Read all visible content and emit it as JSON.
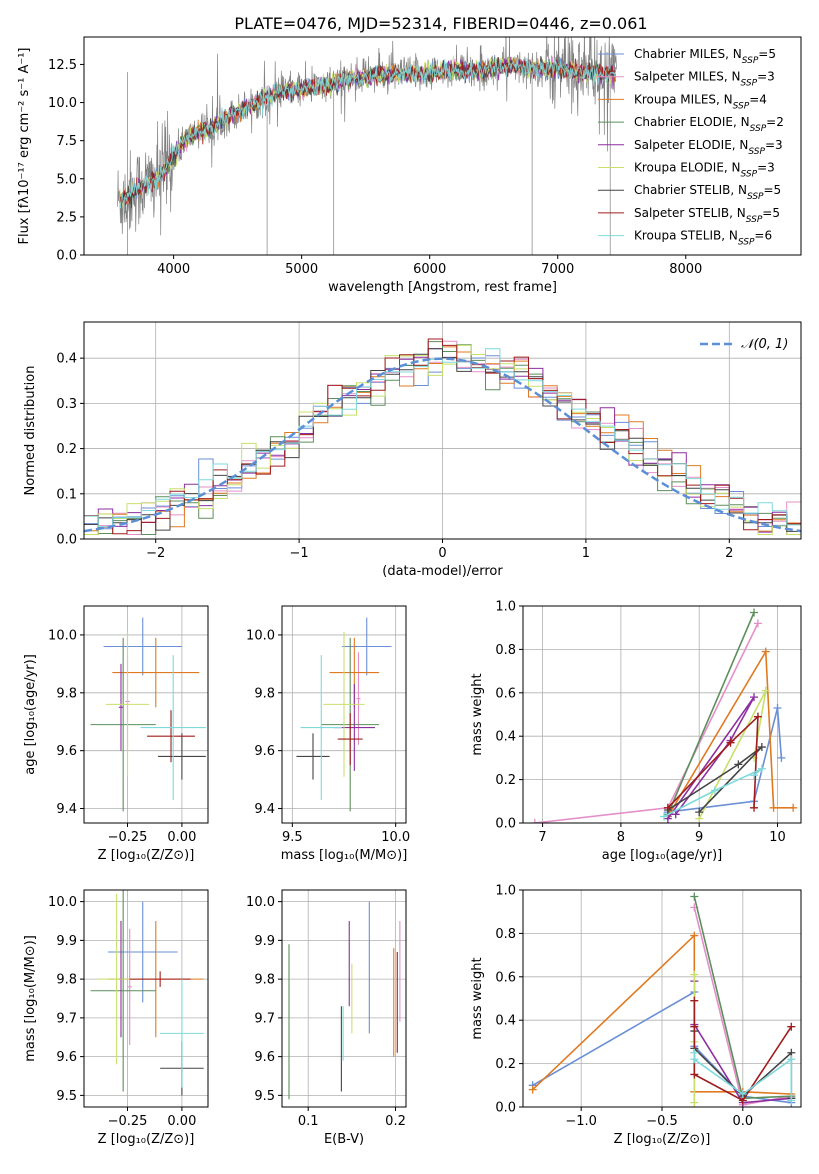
{
  "figure_title": "PLATE=0476, MJD=52314, FIBERID=0446, z=0.061",
  "colors": [
    "#6a8fd6",
    "#e58fc8",
    "#e07a22",
    "#5c8f5c",
    "#8d2ea0",
    "#c8e06a",
    "#444444",
    "#a01c1c",
    "#7fd9dc"
  ],
  "chart_data": [
    {
      "id": "spectrum",
      "type": "line",
      "title": "PLATE=0476, MJD=52314, FIBERID=0446, z=0.061",
      "xlabel": "wavelength [Angstrom, rest frame]",
      "ylabel": "Flux [fλ10⁻¹⁷ erg cm⁻² s⁻¹ A⁻¹]",
      "xlim": [
        3300,
        8900
      ],
      "ylim": [
        0,
        14.3
      ],
      "xticks": [
        4000,
        5000,
        6000,
        7000,
        8000
      ],
      "yticks": [
        0.0,
        2.5,
        5.0,
        7.5,
        10.0,
        12.5
      ],
      "legend_position": "right",
      "data_color": "#808080",
      "continuum": [
        [
          3600,
          3.6
        ],
        [
          3700,
          4.3
        ],
        [
          3800,
          4.7
        ],
        [
          3900,
          5.2
        ],
        [
          4000,
          6.5
        ],
        [
          4100,
          7.6
        ],
        [
          4200,
          8.2
        ],
        [
          4300,
          8.3
        ],
        [
          4400,
          9.0
        ],
        [
          4500,
          9.4
        ],
        [
          4600,
          9.8
        ],
        [
          4700,
          10.2
        ],
        [
          4800,
          10.6
        ],
        [
          4900,
          10.8
        ],
        [
          5000,
          10.9
        ],
        [
          5100,
          11.0
        ],
        [
          5200,
          11.1
        ],
        [
          5300,
          11.4
        ],
        [
          5400,
          11.6
        ],
        [
          5500,
          11.7
        ],
        [
          5600,
          11.8
        ],
        [
          5700,
          11.8
        ],
        [
          5800,
          11.9
        ],
        [
          5900,
          11.9
        ],
        [
          6000,
          12.0
        ],
        [
          6100,
          12.1
        ],
        [
          6200,
          12.2
        ],
        [
          6300,
          12.1
        ],
        [
          6400,
          12.1
        ],
        [
          6500,
          12.3
        ],
        [
          6600,
          12.4
        ],
        [
          6700,
          12.3
        ],
        [
          6800,
          12.3
        ],
        [
          6900,
          12.2
        ],
        [
          7000,
          12.2
        ],
        [
          7100,
          12.1
        ],
        [
          7200,
          12.0
        ],
        [
          7300,
          12.0
        ],
        [
          7400,
          11.9
        ],
        [
          7450,
          11.9
        ]
      ],
      "data_range": [
        3560,
        7460
      ],
      "spikes": [
        [
          4730,
          0
        ],
        [
          5250,
          0
        ],
        [
          6800,
          0
        ],
        [
          7410,
          0
        ],
        [
          3640,
          12.0
        ],
        [
          3640,
          0
        ]
      ],
      "series": [
        {
          "name": "Chabrier MILES, N$_{SSP}$=5"
        },
        {
          "name": "Salpeter MILES, N$_{SSP}$=3"
        },
        {
          "name": "Kroupa MILES, N$_{SSP}$=4"
        },
        {
          "name": "Chabrier ELODIE, N$_{SSP}$=2"
        },
        {
          "name": "Salpeter ELODIE, N$_{SSP}$=3"
        },
        {
          "name": "Kroupa ELODIE, N$_{SSP}$=3"
        },
        {
          "name": "Chabrier STELIB, N$_{SSP}$=5"
        },
        {
          "name": "Salpeter STELIB, N$_{SSP}$=5"
        },
        {
          "name": "Kroupa STELIB, N$_{SSP}$=6"
        }
      ]
    },
    {
      "id": "residuals",
      "type": "line",
      "xlabel": "(data-model)/error",
      "ylabel": "Normed distribution",
      "xlim": [
        -2.5,
        2.5
      ],
      "ylim": [
        0,
        0.48
      ],
      "xticks": [
        -2,
        -1,
        0,
        1,
        2
      ],
      "yticks": [
        0.0,
        0.1,
        0.2,
        0.3,
        0.4
      ],
      "grid": true,
      "legend_position": "top-right",
      "legend_entry": "𝒩(0, 1)",
      "gaussian_color": "#5b8fd6",
      "bin_edges_start": -2.5,
      "bin_width": 0.1,
      "histogram_base": [
        0.02,
        0.03,
        0.03,
        0.04,
        0.05,
        0.06,
        0.07,
        0.09,
        0.1,
        0.12,
        0.14,
        0.16,
        0.18,
        0.2,
        0.22,
        0.25,
        0.27,
        0.29,
        0.31,
        0.33,
        0.35,
        0.36,
        0.38,
        0.39,
        0.4,
        0.4,
        0.4,
        0.39,
        0.38,
        0.37,
        0.36,
        0.34,
        0.32,
        0.3,
        0.28,
        0.26,
        0.24,
        0.22,
        0.2,
        0.18,
        0.16,
        0.14,
        0.12,
        0.1,
        0.09,
        0.07,
        0.06,
        0.05,
        0.04,
        0.03
      ]
    },
    {
      "id": "age-vs-Z",
      "type": "scatter",
      "xlabel": "Z [log₁₀(Z/Z⊙)]",
      "ylabel": "age  [log₁₀(age/yr)]",
      "xlim": [
        -0.45,
        0.12
      ],
      "ylim": [
        9.35,
        10.1
      ],
      "xticks": [
        -0.25,
        0.0
      ],
      "xtick_labels": [
        "−0.25",
        "0.00"
      ],
      "yticks": [
        9.4,
        9.6,
        9.8,
        10.0
      ],
      "grid": true,
      "points": [
        {
          "x": -0.18,
          "y": 9.96,
          "xerr": 0.18,
          "yerr": 0.1
        },
        {
          "x": -0.25,
          "y": 9.77,
          "xerr": 0.01,
          "yerr": 0.16
        },
        {
          "x": -0.12,
          "y": 9.87,
          "xerr": 0.2,
          "yerr": 0.12
        },
        {
          "x": -0.27,
          "y": 9.69,
          "xerr": 0.15,
          "yerr": 0.3
        },
        {
          "x": -0.28,
          "y": 9.75,
          "xerr": 0.01,
          "yerr": 0.15
        },
        {
          "x": -0.25,
          "y": 9.76,
          "xerr": 0.1,
          "yerr": 0.25
        },
        {
          "x": 0.0,
          "y": 9.58,
          "xerr": 0.11,
          "yerr": 0.08
        },
        {
          "x": -0.05,
          "y": 9.65,
          "xerr": 0.11,
          "yerr": 0.09
        },
        {
          "x": -0.04,
          "y": 9.68,
          "xerr": 0.15,
          "yerr": 0.25
        }
      ]
    },
    {
      "id": "age-vs-mass",
      "type": "scatter",
      "xlabel": "mass [log₁₀(M/M⊙)]",
      "xlim": [
        9.45,
        10.05
      ],
      "ylim": [
        9.35,
        10.1
      ],
      "xticks": [
        9.5,
        10.0
      ],
      "yticks": [
        9.4,
        9.6,
        9.8,
        10.0
      ],
      "grid": true,
      "points": [
        {
          "x": 9.86,
          "y": 9.96,
          "xerr": 0.12,
          "yerr": 0.1
        },
        {
          "x": 9.82,
          "y": 9.78,
          "xerr": 0.01,
          "yerr": 0.16
        },
        {
          "x": 9.8,
          "y": 9.87,
          "xerr": 0.12,
          "yerr": 0.12
        },
        {
          "x": 9.78,
          "y": 9.69,
          "xerr": 0.14,
          "yerr": 0.3
        },
        {
          "x": 9.8,
          "y": 9.68,
          "xerr": 0.1,
          "yerr": 0.15
        },
        {
          "x": 9.75,
          "y": 9.76,
          "xerr": 0.1,
          "yerr": 0.25
        },
        {
          "x": 9.6,
          "y": 9.58,
          "xerr": 0.08,
          "yerr": 0.08
        },
        {
          "x": 9.78,
          "y": 9.64,
          "xerr": 0.06,
          "yerr": 0.09
        },
        {
          "x": 9.64,
          "y": 9.68,
          "xerr": 0.1,
          "yerr": 0.25
        }
      ]
    },
    {
      "id": "mass-weight-vs-age",
      "type": "line",
      "xlabel": "age  [log₁₀(age/yr)]",
      "ylabel": "mass weight",
      "xlim": [
        6.75,
        10.3
      ],
      "ylim": [
        0.0,
        1.0
      ],
      "xticks": [
        7,
        8,
        9,
        10
      ],
      "yticks": [
        0.0,
        0.2,
        0.4,
        0.6,
        0.8,
        1.0
      ],
      "grid": true,
      "series": [
        {
          "points": [
            [
              8.6,
              0.05
            ],
            [
              9.7,
              0.1
            ],
            [
              10.0,
              0.53
            ],
            [
              10.05,
              0.3
            ]
          ]
        },
        {
          "points": [
            [
              6.9,
              0.0
            ],
            [
              8.6,
              0.07
            ],
            [
              9.75,
              0.92
            ]
          ]
        },
        {
          "points": [
            [
              8.6,
              0.03
            ],
            [
              9.85,
              0.79
            ],
            [
              9.95,
              0.07
            ],
            [
              10.2,
              0.07
            ]
          ]
        },
        {
          "points": [
            [
              8.6,
              0.04
            ],
            [
              9.7,
              0.97
            ]
          ]
        },
        {
          "points": [
            [
              8.6,
              0.02
            ],
            [
              9.7,
              0.58
            ],
            [
              9.4,
              0.38
            ],
            [
              8.7,
              0.04
            ]
          ]
        },
        {
          "points": [
            [
              9.0,
              0.02
            ],
            [
              9.85,
              0.61
            ],
            [
              9.7,
              0.3
            ]
          ]
        },
        {
          "points": [
            [
              8.6,
              0.06
            ],
            [
              9.5,
              0.27
            ],
            [
              9.8,
              0.35
            ],
            [
              9.0,
              0.05
            ]
          ]
        },
        {
          "points": [
            [
              8.6,
              0.07
            ],
            [
              9.4,
              0.37
            ],
            [
              9.75,
              0.49
            ],
            [
              9.7,
              0.07
            ]
          ]
        },
        {
          "points": [
            [
              8.55,
              0.03
            ],
            [
              9.2,
              0.15
            ],
            [
              9.8,
              0.25
            ],
            [
              9.7,
              0.22
            ]
          ]
        }
      ]
    },
    {
      "id": "mass-vs-Z",
      "type": "scatter",
      "xlabel": "Z [log₁₀(Z/Z⊙)]",
      "ylabel": "mass [log₁₀(M/M⊙)]",
      "xlim": [
        -0.45,
        0.12
      ],
      "ylim": [
        9.47,
        10.03
      ],
      "xticks": [
        -0.25,
        0.0
      ],
      "xtick_labels": [
        "−0.25",
        "0.00"
      ],
      "yticks": [
        9.5,
        9.6,
        9.7,
        9.8,
        9.9,
        10.0
      ],
      "grid": true,
      "points": [
        {
          "x": -0.18,
          "y": 9.87,
          "xerr": 0.16,
          "yerr": 0.13
        },
        {
          "x": -0.24,
          "y": 9.78,
          "xerr": 0.01,
          "yerr": 0.15
        },
        {
          "x": -0.12,
          "y": 9.8,
          "xerr": 0.22,
          "yerr": 0.15
        },
        {
          "x": -0.27,
          "y": 9.77,
          "xerr": 0.15,
          "yerr": 0.26
        },
        {
          "x": -0.28,
          "y": 9.8,
          "xerr": 0.01,
          "yerr": 0.15
        },
        {
          "x": -0.3,
          "y": 9.8,
          "xerr": 0.09,
          "yerr": 0.22
        },
        {
          "x": 0.0,
          "y": 9.57,
          "xerr": 0.1,
          "yerr": 0.07
        },
        {
          "x": -0.1,
          "y": 9.8,
          "xerr": 0.14,
          "yerr": 0.02
        },
        {
          "x": 0.0,
          "y": 9.66,
          "xerr": 0.1,
          "yerr": 0.14
        }
      ]
    },
    {
      "id": "mass-vs-ebv",
      "type": "scatter",
      "xlabel": "E(B-V)",
      "xlim": [
        0.07,
        0.212
      ],
      "ylim": [
        9.47,
        10.03
      ],
      "xticks": [
        0.1,
        0.2
      ],
      "yticks": [
        9.5,
        9.6,
        9.7,
        9.8,
        9.9,
        10.0
      ],
      "grid": true,
      "points": [
        {
          "x": 0.17,
          "y": 9.83,
          "xerr": 0.0,
          "yerr": 0.17
        },
        {
          "x": 0.205,
          "y": 9.82,
          "xerr": 0.0,
          "yerr": 0.13
        },
        {
          "x": 0.198,
          "y": 9.74,
          "xerr": 0.0,
          "yerr": 0.14
        },
        {
          "x": 0.078,
          "y": 9.69,
          "xerr": 0.0,
          "yerr": 0.2
        },
        {
          "x": 0.147,
          "y": 9.84,
          "xerr": 0.0,
          "yerr": 0.11
        },
        {
          "x": 0.15,
          "y": 9.75,
          "xerr": 0.0,
          "yerr": 0.09
        },
        {
          "x": 0.138,
          "y": 9.62,
          "xerr": 0.0,
          "yerr": 0.11
        },
        {
          "x": 0.202,
          "y": 9.74,
          "xerr": 0.0,
          "yerr": 0.13
        },
        {
          "x": 0.14,
          "y": 9.66,
          "xerr": 0.0,
          "yerr": 0.07
        }
      ]
    },
    {
      "id": "mass-weight-vs-Z",
      "type": "line",
      "xlabel": "Z [log₁₀(Z/Z⊙)]",
      "ylabel": "mass weight",
      "xlim": [
        -1.36,
        0.36
      ],
      "ylim": [
        0.0,
        1.0
      ],
      "xticks": [
        -1.0,
        -0.5,
        0.0
      ],
      "xtick_labels": [
        "−1.0",
        "−0.5",
        "0.0"
      ],
      "yticks": [
        0.0,
        0.2,
        0.4,
        0.6,
        0.8,
        1.0
      ],
      "grid": true,
      "series": [
        {
          "points": [
            [
              -1.3,
              0.1
            ],
            [
              -0.3,
              0.53
            ],
            [
              -0.3,
              0.28
            ],
            [
              0.0,
              0.05
            ],
            [
              0.3,
              0.02
            ]
          ]
        },
        {
          "points": [
            [
              -0.3,
              0.92
            ],
            [
              0.0,
              0.01
            ],
            [
              0.3,
              0.05
            ]
          ]
        },
        {
          "points": [
            [
              -1.3,
              0.08
            ],
            [
              -0.3,
              0.79
            ],
            [
              -0.3,
              0.07
            ],
            [
              0.0,
              0.07
            ],
            [
              0.3,
              0.06
            ]
          ]
        },
        {
          "points": [
            [
              -0.3,
              0.97
            ],
            [
              0.0,
              0.04
            ],
            [
              0.3,
              0.05
            ]
          ]
        },
        {
          "points": [
            [
              -0.3,
              0.58
            ],
            [
              -0.3,
              0.38
            ],
            [
              0.0,
              0.02
            ],
            [
              0.3,
              0.04
            ]
          ]
        },
        {
          "points": [
            [
              -0.3,
              0.61
            ],
            [
              -0.3,
              0.3
            ],
            [
              -0.3,
              0.02
            ]
          ]
        },
        {
          "points": [
            [
              -0.3,
              0.35
            ],
            [
              -0.3,
              0.27
            ],
            [
              0.0,
              0.05
            ],
            [
              0.3,
              0.25
            ],
            [
              0.3,
              0.04
            ]
          ]
        },
        {
          "points": [
            [
              -0.3,
              0.49
            ],
            [
              -0.3,
              0.37
            ],
            [
              -0.3,
              0.15
            ],
            [
              0.0,
              0.03
            ],
            [
              0.3,
              0.37
            ]
          ]
        },
        {
          "points": [
            [
              -0.3,
              0.25
            ],
            [
              -0.3,
              0.22
            ],
            [
              0.0,
              0.06
            ],
            [
              0.3,
              0.22
            ],
            [
              0.3,
              0.03
            ]
          ]
        }
      ]
    }
  ]
}
